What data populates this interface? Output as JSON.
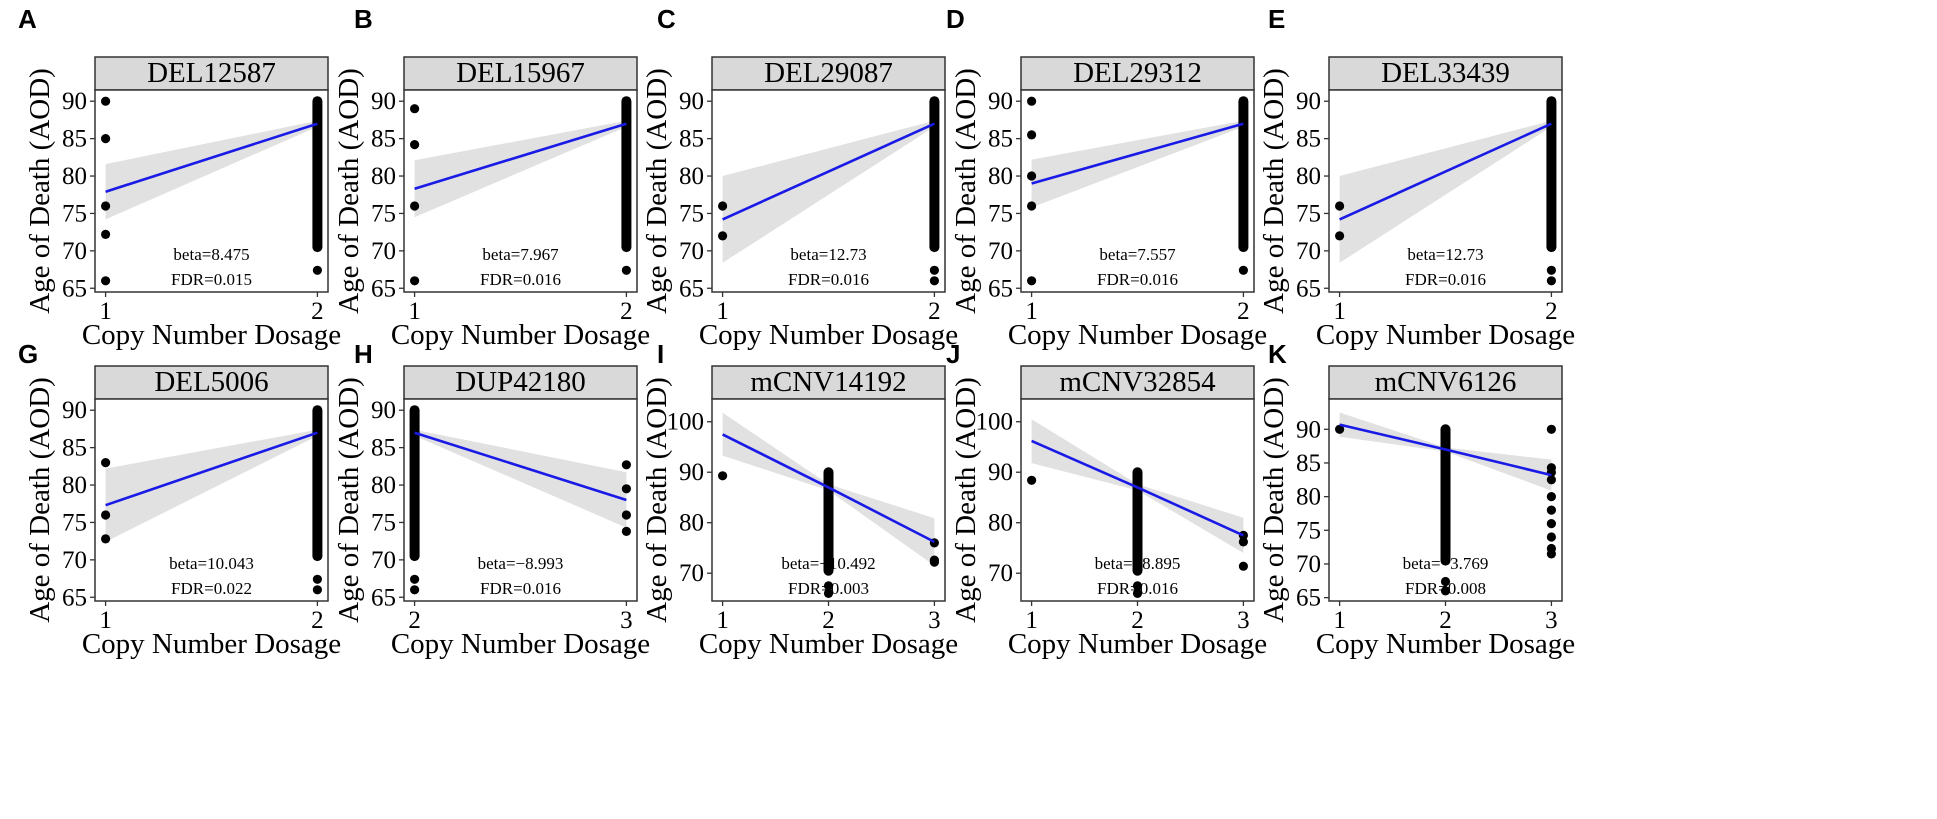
{
  "figure": {
    "colors": {
      "line": "#1a1ae6",
      "ribbon": "#dcdcdc",
      "point": "#000000",
      "strip_fill": "#d9d9d9",
      "frame": "#333333"
    }
  },
  "chart_data": [
    {
      "panel": "A",
      "type": "scatter",
      "title": "DEL12587",
      "xlabel": "Copy Number Dosage",
      "ylabel": "Age of Death (AOD)",
      "xlim": [
        0.95,
        2.05
      ],
      "ylim": [
        64.5,
        91.5
      ],
      "xticks": [
        1,
        2
      ],
      "yticks": [
        65,
        70,
        75,
        80,
        85,
        90
      ],
      "points": [
        [
          1,
          90
        ],
        [
          1,
          85
        ],
        [
          1,
          76
        ],
        [
          1,
          72.2
        ],
        [
          1,
          66
        ],
        [
          2,
          67.4
        ]
      ],
      "dense": [
        {
          "x": 2,
          "y0": 70.5,
          "y1": 90
        }
      ],
      "fit": [
        [
          1,
          77.9
        ],
        [
          2,
          87
        ]
      ],
      "ci_lo": [
        [
          1,
          74.2
        ],
        [
          2,
          86.6
        ]
      ],
      "ci_hi": [
        [
          1,
          81.6
        ],
        [
          2,
          87.4
        ]
      ],
      "annotation": {
        "beta": "beta=8.475",
        "fdr": "FDR=0.015"
      }
    },
    {
      "panel": "B",
      "type": "scatter",
      "title": "DEL15967",
      "xlabel": "Copy Number Dosage",
      "ylabel": "Age of Death (AOD)",
      "xlim": [
        0.95,
        2.05
      ],
      "ylim": [
        64.5,
        91.5
      ],
      "xticks": [
        1,
        2
      ],
      "yticks": [
        65,
        70,
        75,
        80,
        85,
        90
      ],
      "points": [
        [
          1,
          89
        ],
        [
          1,
          84.2
        ],
        [
          1,
          76
        ],
        [
          1,
          66
        ],
        [
          2,
          67.4
        ]
      ],
      "dense": [
        {
          "x": 2,
          "y0": 70.5,
          "y1": 90
        }
      ],
      "fit": [
        [
          1,
          78.3
        ],
        [
          2,
          87
        ]
      ],
      "ci_lo": [
        [
          1,
          74.5
        ],
        [
          2,
          86.6
        ]
      ],
      "ci_hi": [
        [
          1,
          82.1
        ],
        [
          2,
          87.4
        ]
      ],
      "annotation": {
        "beta": "beta=7.967",
        "fdr": "FDR=0.016"
      }
    },
    {
      "panel": "C",
      "type": "scatter",
      "title": "DEL29087",
      "xlabel": "Copy Number Dosage",
      "ylabel": "Age of Death (AOD)",
      "xlim": [
        0.95,
        2.05
      ],
      "ylim": [
        64.5,
        91.5
      ],
      "xticks": [
        1,
        2
      ],
      "yticks": [
        65,
        70,
        75,
        80,
        85,
        90
      ],
      "points": [
        [
          1,
          76
        ],
        [
          1,
          72
        ],
        [
          2,
          67.4
        ],
        [
          2,
          66
        ]
      ],
      "dense": [
        {
          "x": 2,
          "y0": 70.5,
          "y1": 90
        }
      ],
      "fit": [
        [
          1,
          74.2
        ],
        [
          2,
          87
        ]
      ],
      "ci_lo": [
        [
          1,
          68.4
        ],
        [
          2,
          86.6
        ]
      ],
      "ci_hi": [
        [
          1,
          80
        ],
        [
          2,
          87.4
        ]
      ],
      "annotation": {
        "beta": "beta=12.73",
        "fdr": "FDR=0.016"
      }
    },
    {
      "panel": "D",
      "type": "scatter",
      "title": "DEL29312",
      "xlabel": "Copy Number Dosage",
      "ylabel": "Age of Death (AOD)",
      "xlim": [
        0.95,
        2.05
      ],
      "ylim": [
        64.5,
        91.5
      ],
      "xticks": [
        1,
        2
      ],
      "yticks": [
        65,
        70,
        75,
        80,
        85,
        90
      ],
      "points": [
        [
          1,
          90
        ],
        [
          1,
          85.5
        ],
        [
          1,
          80
        ],
        [
          1,
          76
        ],
        [
          1,
          66
        ],
        [
          2,
          67.4
        ]
      ],
      "dense": [
        {
          "x": 2,
          "y0": 70.5,
          "y1": 90
        }
      ],
      "fit": [
        [
          1,
          79
        ],
        [
          2,
          87
        ]
      ],
      "ci_lo": [
        [
          1,
          75.8
        ],
        [
          2,
          86.6
        ]
      ],
      "ci_hi": [
        [
          1,
          82.2
        ],
        [
          2,
          87.4
        ]
      ],
      "annotation": {
        "beta": "beta=7.557",
        "fdr": "FDR=0.016"
      }
    },
    {
      "panel": "E",
      "type": "scatter",
      "title": "DEL33439",
      "xlabel": "Copy Number Dosage",
      "ylabel": "Age of Death (AOD)",
      "xlim": [
        0.95,
        2.05
      ],
      "ylim": [
        64.5,
        91.5
      ],
      "xticks": [
        1,
        2
      ],
      "yticks": [
        65,
        70,
        75,
        80,
        85,
        90
      ],
      "points": [
        [
          1,
          76
        ],
        [
          1,
          72
        ],
        [
          2,
          67.4
        ],
        [
          2,
          66
        ]
      ],
      "dense": [
        {
          "x": 2,
          "y0": 70.5,
          "y1": 90
        }
      ],
      "fit": [
        [
          1,
          74.2
        ],
        [
          2,
          87
        ]
      ],
      "ci_lo": [
        [
          1,
          68.4
        ],
        [
          2,
          86.6
        ]
      ],
      "ci_hi": [
        [
          1,
          80
        ],
        [
          2,
          87.4
        ]
      ],
      "annotation": {
        "beta": "beta=12.73",
        "fdr": "FDR=0.016"
      }
    },
    {
      "panel": "G",
      "type": "scatter",
      "title": "DEL5006",
      "xlabel": "Copy Number Dosage",
      "ylabel": "Age of Death (AOD)",
      "xlim": [
        0.95,
        2.05
      ],
      "ylim": [
        64.5,
        91.5
      ],
      "xticks": [
        1,
        2
      ],
      "yticks": [
        65,
        70,
        75,
        80,
        85,
        90
      ],
      "points": [
        [
          1,
          83
        ],
        [
          1,
          76
        ],
        [
          1,
          72.8
        ],
        [
          2,
          67.4
        ],
        [
          2,
          66
        ]
      ],
      "dense": [
        {
          "x": 2,
          "y0": 70.5,
          "y1": 90
        }
      ],
      "fit": [
        [
          1,
          77.3
        ],
        [
          2,
          87
        ]
      ],
      "ci_lo": [
        [
          1,
          72.4
        ],
        [
          2,
          86.6
        ]
      ],
      "ci_hi": [
        [
          1,
          82.2
        ],
        [
          2,
          87.4
        ]
      ],
      "annotation": {
        "beta": "beta=10.043",
        "fdr": "FDR=0.022"
      }
    },
    {
      "panel": "H",
      "type": "scatter",
      "title": "DUP42180",
      "xlabel": "Copy Number Dosage",
      "ylabel": "Age of Death (AOD)",
      "xlim": [
        1.95,
        3.05
      ],
      "ylim": [
        64.5,
        91.5
      ],
      "xticks": [
        2,
        3
      ],
      "yticks": [
        65,
        70,
        75,
        80,
        85,
        90
      ],
      "points": [
        [
          2,
          67.4
        ],
        [
          2,
          66
        ],
        [
          3,
          82.7
        ],
        [
          3,
          79.5
        ],
        [
          3,
          76
        ],
        [
          3,
          73.8
        ]
      ],
      "dense": [
        {
          "x": 2,
          "y0": 70.5,
          "y1": 90
        }
      ],
      "fit": [
        [
          2,
          87
        ],
        [
          3,
          78
        ]
      ],
      "ci_lo": [
        [
          2,
          86.6
        ],
        [
          3,
          74.3
        ]
      ],
      "ci_hi": [
        [
          2,
          87.4
        ],
        [
          3,
          81.7
        ]
      ],
      "annotation": {
        "beta": "beta=−8.993",
        "fdr": "FDR=0.016"
      }
    },
    {
      "panel": "I",
      "type": "scatter",
      "title": "mCNV14192",
      "xlabel": "Copy Number Dosage",
      "ylabel": "Age of Death (AOD)",
      "xlim": [
        0.9,
        3.1
      ],
      "ylim": [
        64.5,
        104.5
      ],
      "xticks": [
        1,
        2,
        3
      ],
      "yticks": [
        70,
        80,
        90,
        100
      ],
      "points": [
        [
          1,
          89.3
        ],
        [
          2,
          67.5
        ],
        [
          2,
          66
        ],
        [
          3,
          76
        ],
        [
          3,
          72.6
        ],
        [
          3,
          72.2
        ]
      ],
      "dense": [
        {
          "x": 2,
          "y0": 70.5,
          "y1": 90
        }
      ],
      "fit": [
        [
          1,
          97.5
        ],
        [
          2,
          87
        ],
        [
          3,
          76.2
        ]
      ],
      "ci_lo": [
        [
          1,
          93.3
        ],
        [
          2,
          86.4
        ],
        [
          3,
          71.5
        ]
      ],
      "ci_hi": [
        [
          1,
          101.8
        ],
        [
          2,
          87.6
        ],
        [
          3,
          80.9
        ]
      ],
      "annotation": {
        "beta": "beta=−10.492",
        "fdr": "FDR=0.003"
      }
    },
    {
      "panel": "J",
      "type": "scatter",
      "title": "mCNV32854",
      "xlabel": "Copy Number Dosage",
      "ylabel": "Age of Death (AOD)",
      "xlim": [
        0.9,
        3.1
      ],
      "ylim": [
        64.5,
        104.5
      ],
      "xticks": [
        1,
        2,
        3
      ],
      "yticks": [
        70,
        80,
        90,
        100
      ],
      "points": [
        [
          1,
          88.4
        ],
        [
          2,
          67.5
        ],
        [
          2,
          66
        ],
        [
          3,
          77.5
        ],
        [
          3,
          76.2
        ],
        [
          3,
          71.4
        ]
      ],
      "dense": [
        {
          "x": 2,
          "y0": 70.5,
          "y1": 90
        }
      ],
      "fit": [
        [
          1,
          96.2
        ],
        [
          2,
          87
        ],
        [
          3,
          77.5
        ]
      ],
      "ci_lo": [
        [
          1,
          91.8
        ],
        [
          2,
          86.4
        ],
        [
          3,
          74
        ]
      ],
      "ci_hi": [
        [
          1,
          100.5
        ],
        [
          2,
          87.6
        ],
        [
          3,
          81
        ]
      ],
      "annotation": {
        "beta": "beta=−8.895",
        "fdr": "FDR=0.016"
      }
    },
    {
      "panel": "K",
      "type": "scatter",
      "title": "mCNV6126",
      "xlabel": "Copy Number Dosage",
      "ylabel": "Age of Death (AOD)",
      "xlim": [
        0.9,
        3.1
      ],
      "ylim": [
        64.5,
        94.5
      ],
      "xticks": [
        1,
        2,
        3
      ],
      "yticks": [
        65,
        70,
        75,
        80,
        85,
        90
      ],
      "points": [
        [
          1,
          90
        ],
        [
          2,
          67.4
        ],
        [
          2,
          66
        ],
        [
          3,
          90
        ],
        [
          3,
          84.3
        ],
        [
          3,
          83.6
        ],
        [
          3,
          82.5
        ],
        [
          3,
          80
        ],
        [
          3,
          78
        ],
        [
          3,
          76
        ],
        [
          3,
          74
        ],
        [
          3,
          72.3
        ],
        [
          3,
          71.5
        ]
      ],
      "dense": [
        {
          "x": 2,
          "y0": 70.5,
          "y1": 90
        }
      ],
      "fit": [
        [
          1,
          90.7
        ],
        [
          2,
          87
        ],
        [
          3,
          83.2
        ]
      ],
      "ci_lo": [
        [
          1,
          88.9
        ],
        [
          2,
          86.7
        ],
        [
          3,
          80.9
        ]
      ],
      "ci_hi": [
        [
          1,
          92.5
        ],
        [
          2,
          87.3
        ],
        [
          3,
          85.5
        ]
      ],
      "annotation": {
        "beta": "beta=−3.769",
        "fdr": "FDR=0.008"
      }
    }
  ]
}
